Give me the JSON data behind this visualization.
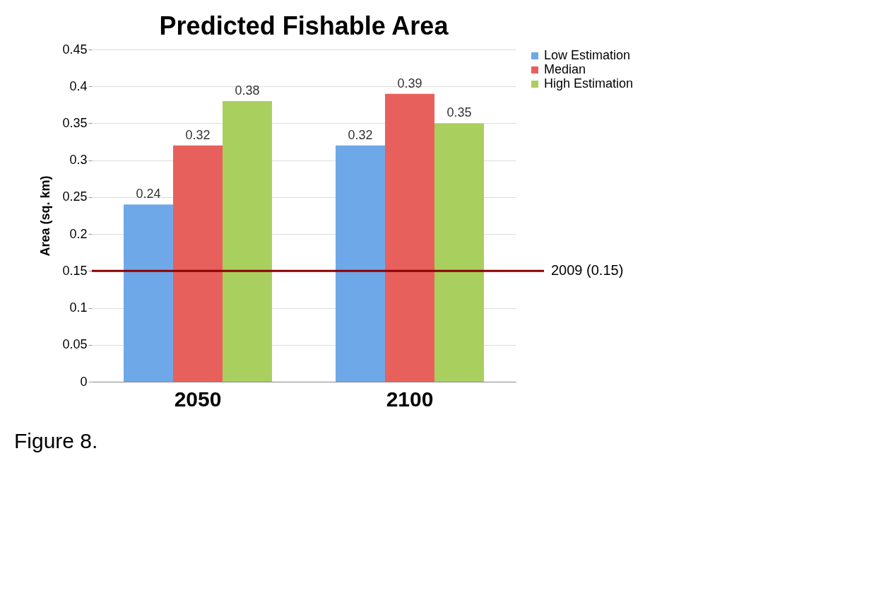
{
  "chart_data": {
    "type": "bar",
    "title": "Predicted Fishable Area",
    "ylabel": "Area (sq. km)",
    "categories": [
      "2050",
      "2100"
    ],
    "series": [
      {
        "name": "Low Estimation",
        "color": "#6fa8e8",
        "values": [
          0.24,
          0.32
        ]
      },
      {
        "name": "Median",
        "color": "#e8605c",
        "values": [
          0.32,
          0.39
        ]
      },
      {
        "name": "High Estimation",
        "color": "#a9cf5e",
        "values": [
          0.38,
          0.35
        ]
      }
    ],
    "ylim": [
      0,
      0.45
    ],
    "yticks": [
      0,
      0.05,
      0.1,
      0.15,
      0.2,
      0.25,
      0.3,
      0.35,
      0.4,
      0.45
    ],
    "grid": "y",
    "legend": "right",
    "data_labels": true,
    "ref_lines": [
      {
        "axis": "y",
        "value": 0.15,
        "label": "2009 (0.15)",
        "color": "#8b0000",
        "line_style": "solid"
      }
    ],
    "annotations": [
      "Figure 8."
    ]
  }
}
